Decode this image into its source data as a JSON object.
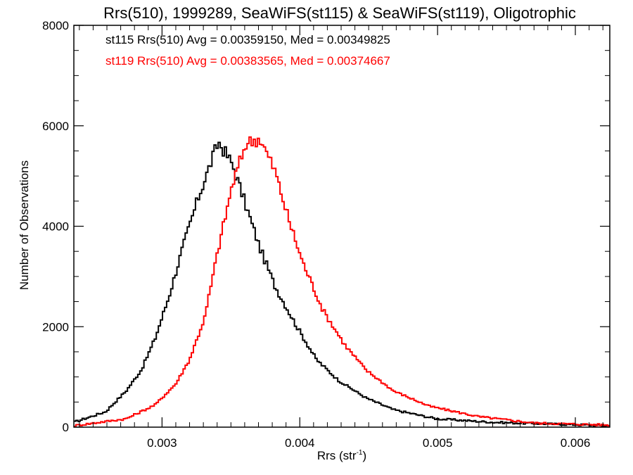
{
  "chart_data": {
    "type": "line",
    "style": "step-histogram",
    "title": "Rrs(510), 1999289, SeaWiFS(st115) & SeaWiFS(st119), Oligotrophic",
    "xlabel": "Rrs (str",
    "xlabel_superscript": "-1",
    "xlabel_suffix": ")",
    "ylabel": "Number of Observations",
    "xlim": [
      0.00236,
      0.00625
    ],
    "ylim": [
      0,
      8000
    ],
    "xticks": [
      0.003,
      0.004,
      0.005,
      0.006
    ],
    "xtick_labels": [
      "0.003",
      "0.004",
      "0.005",
      "0.006"
    ],
    "yticks": [
      0,
      2000,
      4000,
      6000,
      8000
    ],
    "ytick_labels": [
      "0",
      "2000",
      "4000",
      "6000",
      "8000"
    ],
    "grid": false,
    "legend_position": "top-left",
    "series": [
      {
        "name": "st115",
        "color": "#000000",
        "legend": "st115 Rrs(510) Avg = 0.00359150, Med = 0.00349825",
        "x": [
          0.00236,
          0.00259,
          0.00274,
          0.00285,
          0.00295,
          0.00305,
          0.00315,
          0.00326,
          0.00336,
          0.00341,
          0.00351,
          0.00361,
          0.00371,
          0.00382,
          0.00397,
          0.00412,
          0.00428,
          0.00448,
          0.00468,
          0.00499,
          0.0054,
          0.00625
        ],
        "y": [
          97,
          306,
          722,
          1139,
          1764,
          2597,
          3569,
          4542,
          5306,
          5681,
          5236,
          4403,
          3569,
          2806,
          2042,
          1347,
          931,
          583,
          347,
          167,
          97,
          28
        ]
      },
      {
        "name": "st119",
        "color": "#ff0000",
        "legend": "st119 Rrs(510) Avg = 0.00383565, Med = 0.00374667",
        "x": [
          0.00236,
          0.00274,
          0.00295,
          0.0031,
          0.0032,
          0.00331,
          0.00341,
          0.00351,
          0.00361,
          0.00371,
          0.00382,
          0.00392,
          0.00402,
          0.00417,
          0.00433,
          0.00448,
          0.00468,
          0.00494,
          0.0053,
          0.0057,
          0.00625
        ],
        "y": [
          28,
          167,
          444,
          861,
          1347,
          2181,
          3569,
          4819,
          5653,
          5750,
          5097,
          4125,
          3292,
          2319,
          1625,
          1139,
          722,
          417,
          208,
          83,
          42
        ]
      }
    ]
  }
}
